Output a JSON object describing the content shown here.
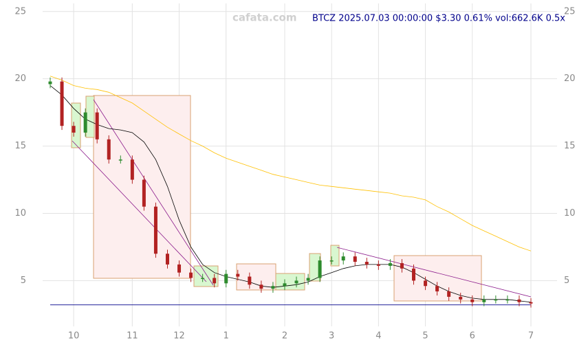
{
  "chart_data": {
    "type": "candlestick",
    "title": "BTCZ 2025.07.03 00:00:00 $3.30 0.61% vol:662.6K 0.5x",
    "watermark": "cafata.com",
    "categories": [
      null,
      null,
      "10",
      null,
      null,
      null,
      null,
      "11",
      null,
      null,
      null,
      "12",
      null,
      null,
      null,
      "1",
      null,
      null,
      null,
      null,
      "2",
      null,
      null,
      null,
      "3",
      null,
      null,
      null,
      "4",
      null,
      null,
      null,
      "5",
      null,
      null,
      null,
      "6",
      null,
      null,
      null,
      null,
      "7"
    ],
    "open": [
      19.6,
      19.8,
      16.5,
      16,
      17.5,
      15.5,
      14,
      14,
      12.5,
      10.5,
      7,
      6.2,
      5.6,
      5.2,
      5.2,
      4.8,
      5.5,
      5.3,
      4.7,
      4.4,
      4.6,
      4.8,
      5,
      5.2,
      6.5,
      6.5,
      6.8,
      6.4,
      6.2,
      6.1,
      6.3,
      5.9,
      5,
      4.6,
      4.2,
      3.8,
      3.6,
      3.4,
      3.6,
      3.6,
      3.6,
      3.4
    ],
    "high": [
      20.1,
      20.1,
      16.8,
      17.8,
      17.8,
      15.8,
      14.3,
      14.3,
      12.8,
      10.8,
      7.3,
      6.5,
      5.9,
      5.5,
      5.5,
      5.8,
      5.8,
      5.6,
      5,
      4.9,
      5.1,
      5.3,
      5.5,
      6.8,
      6.8,
      7.1,
      7.1,
      6.7,
      6.5,
      6.6,
      6.6,
      6.2,
      5.3,
      4.9,
      4.5,
      4.1,
      3.9,
      3.9,
      3.9,
      3.9,
      3.9,
      3.7
    ],
    "low": [
      19.3,
      16.2,
      15.7,
      15.7,
      15.2,
      13.7,
      13.7,
      12.2,
      10.2,
      6.7,
      5.9,
      5.3,
      4.9,
      4.9,
      4.5,
      4.5,
      5,
      4.4,
      4.1,
      4.1,
      4.3,
      4.5,
      4.7,
      4.9,
      6.2,
      6.2,
      6.1,
      5.9,
      5.8,
      5.8,
      5.6,
      4.7,
      4.3,
      3.9,
      3.5,
      3.3,
      3.1,
      3.1,
      3.3,
      3.3,
      3.1,
      3
    ],
    "close": [
      19.8,
      16.5,
      16,
      17.5,
      15.5,
      14,
      14,
      12.5,
      10.5,
      7,
      6.2,
      5.6,
      5.2,
      5.2,
      4.8,
      5.5,
      5.3,
      4.7,
      4.4,
      4.6,
      4.8,
      5,
      5.2,
      6.5,
      6.5,
      6.8,
      6.4,
      6.2,
      6.1,
      6.3,
      5.9,
      5,
      4.6,
      4.2,
      3.8,
      3.6,
      3.4,
      3.6,
      3.6,
      3.6,
      3.4,
      3.3
    ],
    "up_color": "#2e8b2e",
    "down_color": "#b22222",
    "overlays": [
      {
        "color": "#ffc000",
        "values": [
          20.2,
          19.9,
          19.5,
          19.3,
          19.2,
          19,
          18.6,
          18.2,
          17.6,
          17,
          16.4,
          15.9,
          15.4,
          15,
          14.5,
          14.1,
          13.8,
          13.5,
          13.2,
          12.9,
          12.7,
          12.5,
          12.3,
          12.1,
          12,
          11.9,
          11.8,
          11.7,
          11.6,
          11.5,
          11.3,
          11.2,
          11,
          10.5,
          10.1,
          9.6,
          9.1,
          8.7,
          8.3,
          7.9,
          7.5,
          7.2
        ]
      },
      {
        "color": "#000000",
        "values": [
          19.5,
          18.8,
          17.8,
          17,
          16.6,
          16.3,
          16.2,
          16,
          15.3,
          14,
          12,
          9.5,
          7.5,
          6.2,
          5.6,
          5.3,
          5.1,
          4.9,
          4.6,
          4.5,
          4.6,
          4.7,
          4.9,
          5.3,
          5.6,
          5.9,
          6.1,
          6.2,
          6.2,
          6.2,
          6,
          5.6,
          5.1,
          4.6,
          4.2,
          3.9,
          3.7,
          3.6,
          3.6,
          3.6,
          3.5,
          3.4
        ]
      }
    ],
    "support_line": 3.2,
    "support_color": "#00008b",
    "ylim": [
      1.6,
      25.6
    ],
    "yticks": [
      5,
      10,
      15,
      20,
      25
    ],
    "grid": true
  }
}
